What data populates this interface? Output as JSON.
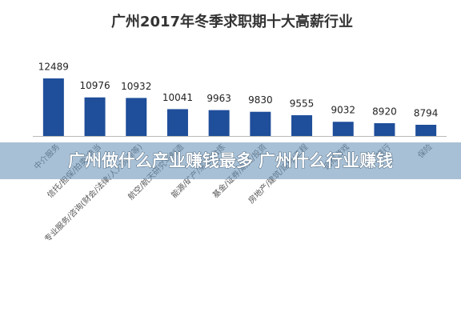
{
  "chart_data": {
    "type": "bar",
    "title": "广州2017年冬季求职期十大高薪行业",
    "categories": [
      "中介服务",
      "信托/担保/拍卖/典当",
      "专业服务/咨询(财会/法律/人力资源等)",
      "航空/航天研究与制造",
      "能源/矿产/采掘/冶炼",
      "基金/证券/期货/投资",
      "房地产/建筑/建材/工程",
      "网络游戏",
      "银行",
      "保险"
    ],
    "values": [
      12489,
      10976,
      10932,
      10041,
      9963,
      9830,
      9555,
      9032,
      8920,
      8794
    ],
    "color": "#1f4e9a",
    "ylim": [
      7900,
      13000
    ]
  },
  "overlay_text": "广州做什么产业赚钱最多 广州什么行业赚钱"
}
